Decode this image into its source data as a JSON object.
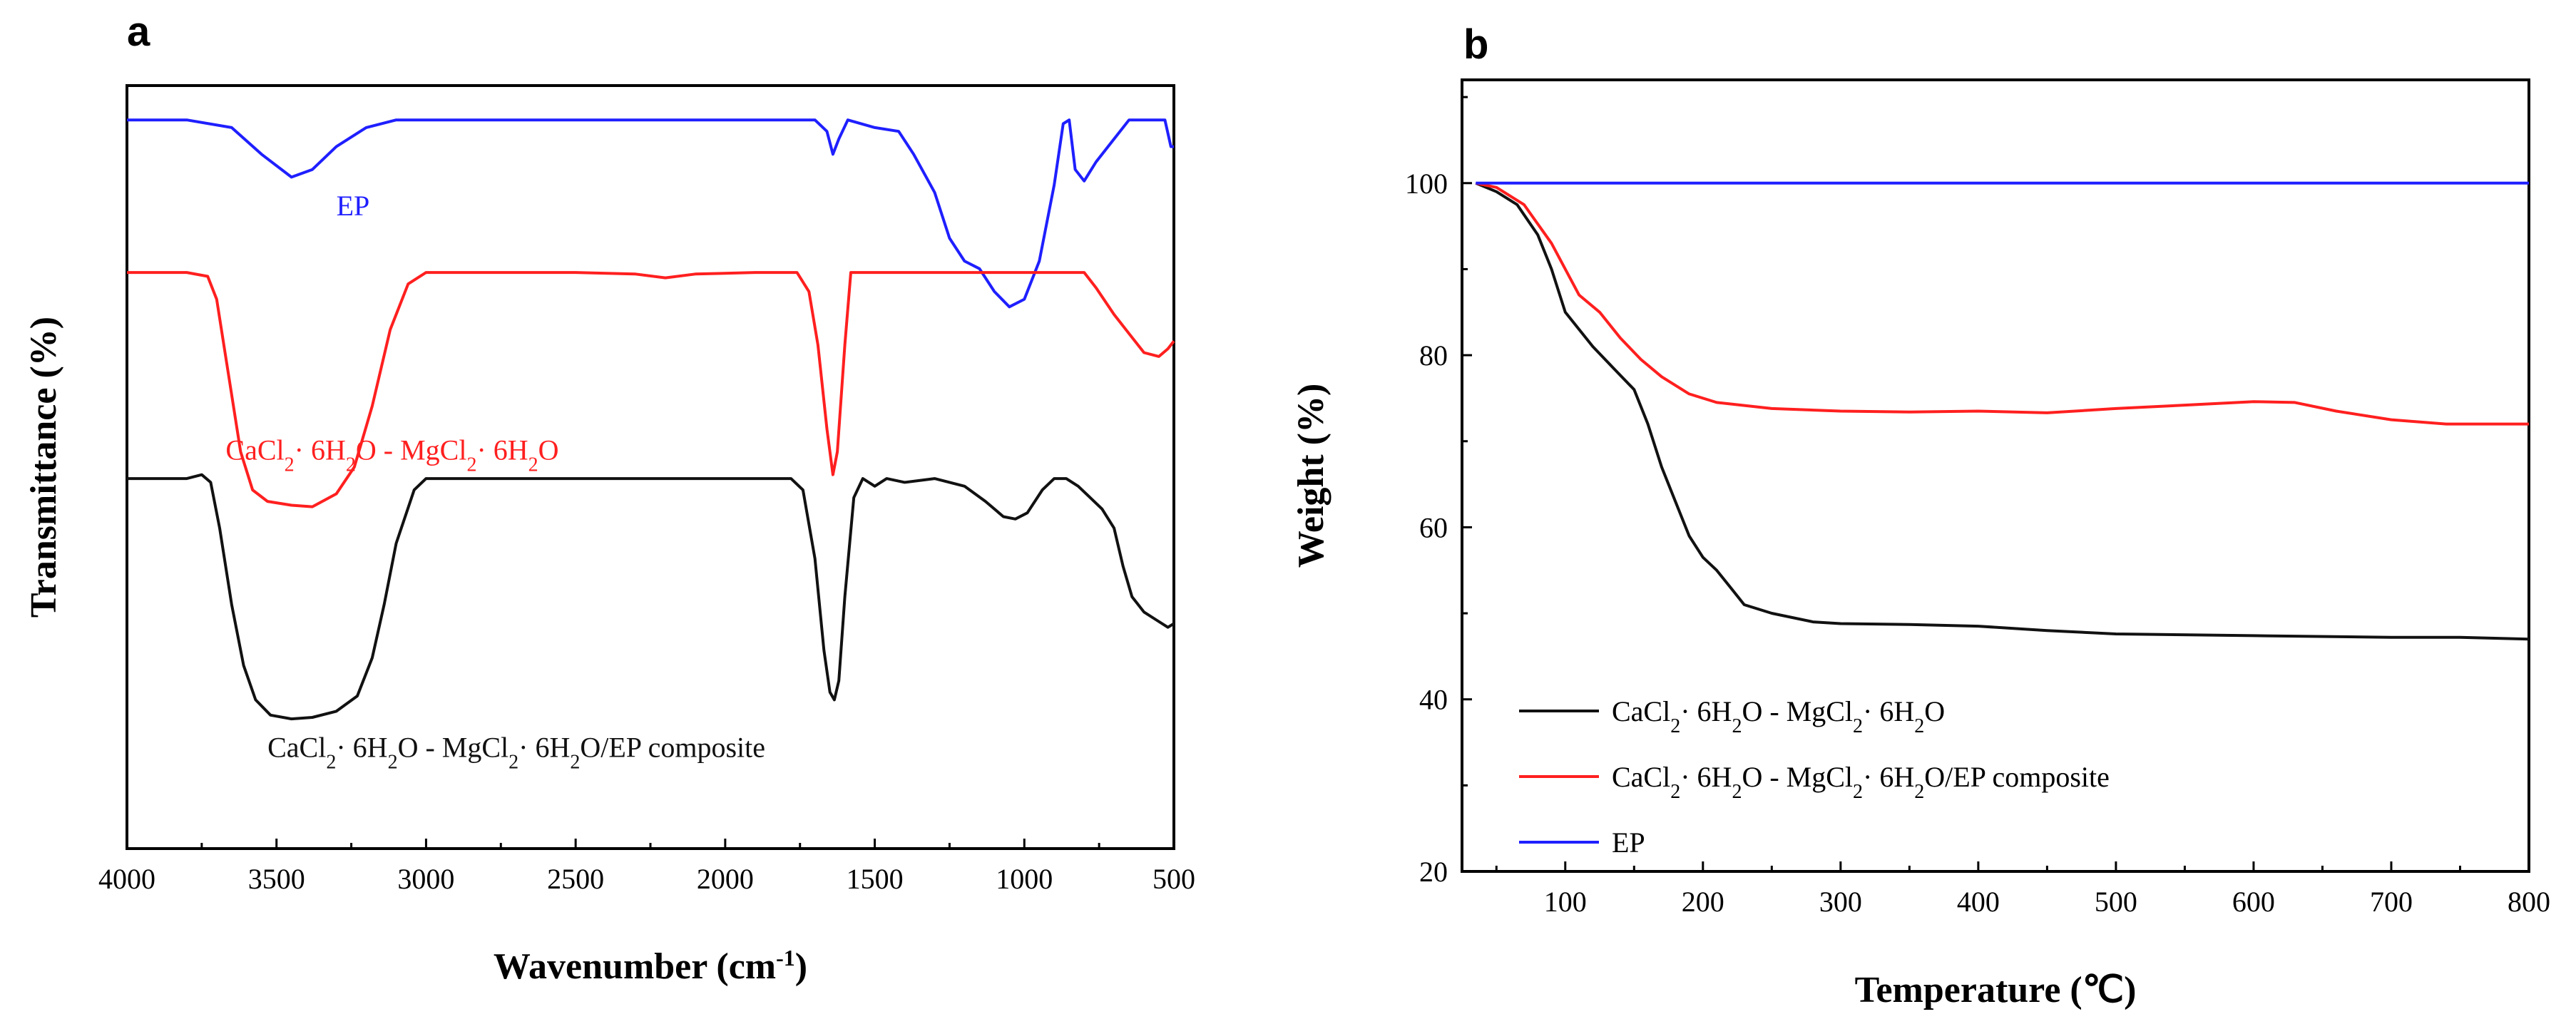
{
  "chart_data": [
    {
      "panel": "a",
      "type": "line",
      "title": "",
      "xlabel": "Wavenumber (cm-1)",
      "xlabel_parts": {
        "main": "Wavenumber (cm",
        "sup": "-1",
        "close": ")"
      },
      "ylabel": "Transmittance (%)",
      "xlim": [
        4000,
        500
      ],
      "x_reversed": true,
      "ylim": [
        0,
        100
      ],
      "y_ticks_shown": false,
      "grid": false,
      "xticks": [
        4000,
        3500,
        3000,
        2500,
        2000,
        1500,
        1000,
        500
      ],
      "tick_labels": [
        "4000",
        "3500",
        "3000",
        "2500",
        "2000",
        "1500",
        "1000",
        "500"
      ],
      "series": [
        {
          "name": "EP",
          "color": "#1f1fff",
          "label_text": "EP",
          "label_at": [
            3300,
            83
          ],
          "points": [
            [
              4000,
              95.5
            ],
            [
              3800,
              95.5
            ],
            [
              3650,
              94.5
            ],
            [
              3550,
              91
            ],
            [
              3450,
              88
            ],
            [
              3380,
              89
            ],
            [
              3300,
              92
            ],
            [
              3200,
              94.5
            ],
            [
              3100,
              95.5
            ],
            [
              2500,
              95.5
            ],
            [
              2000,
              95.5
            ],
            [
              1700,
              95.5
            ],
            [
              1660,
              94
            ],
            [
              1640,
              91
            ],
            [
              1620,
              93
            ],
            [
              1590,
              95.5
            ],
            [
              1500,
              94.5
            ],
            [
              1420,
              94
            ],
            [
              1370,
              91
            ],
            [
              1300,
              86
            ],
            [
              1250,
              80
            ],
            [
              1200,
              77
            ],
            [
              1150,
              76
            ],
            [
              1100,
              73
            ],
            [
              1050,
              71
            ],
            [
              1000,
              72
            ],
            [
              950,
              77
            ],
            [
              900,
              87
            ],
            [
              870,
              95
            ],
            [
              850,
              95.5
            ],
            [
              830,
              89
            ],
            [
              800,
              87.5
            ],
            [
              760,
              90
            ],
            [
              700,
              93
            ],
            [
              650,
              95.5
            ],
            [
              570,
              95.5
            ],
            [
              530,
              95.5
            ],
            [
              510,
              92
            ],
            [
              500,
              92
            ]
          ]
        },
        {
          "name": "CaCl2·6H2O - MgCl2·6H2O",
          "color": "#ff1f1f",
          "label_parts": [
            {
              "t": "CaCl"
            },
            {
              "t": "2",
              "sub": true
            },
            {
              "t": "·  6H"
            },
            {
              "t": "2",
              "sub": true
            },
            {
              "t": "O - MgCl"
            },
            {
              "t": "2",
              "sub": true
            },
            {
              "t": "·  6H"
            },
            {
              "t": "2",
              "sub": true
            },
            {
              "t": "O"
            }
          ],
          "label_at": [
            3670,
            51
          ],
          "points": [
            [
              4000,
              75.5
            ],
            [
              3800,
              75.5
            ],
            [
              3730,
              75
            ],
            [
              3700,
              72
            ],
            [
              3660,
              62
            ],
            [
              3620,
              52
            ],
            [
              3580,
              47
            ],
            [
              3530,
              45.5
            ],
            [
              3450,
              45
            ],
            [
              3380,
              44.8
            ],
            [
              3300,
              46.5
            ],
            [
              3240,
              50
            ],
            [
              3180,
              58
            ],
            [
              3120,
              68
            ],
            [
              3060,
              74
            ],
            [
              3000,
              75.5
            ],
            [
              2800,
              75.5
            ],
            [
              2500,
              75.5
            ],
            [
              2300,
              75.3
            ],
            [
              2200,
              74.8
            ],
            [
              2100,
              75.3
            ],
            [
              1900,
              75.5
            ],
            [
              1760,
              75.5
            ],
            [
              1720,
              73
            ],
            [
              1690,
              66
            ],
            [
              1660,
              55
            ],
            [
              1640,
              49
            ],
            [
              1625,
              52
            ],
            [
              1600,
              66
            ],
            [
              1580,
              75.5
            ],
            [
              1300,
              75.5
            ],
            [
              900,
              75.5
            ],
            [
              800,
              75.5
            ],
            [
              760,
              73.5
            ],
            [
              700,
              70
            ],
            [
              650,
              67.5
            ],
            [
              600,
              65
            ],
            [
              550,
              64.5
            ],
            [
              520,
              65.5
            ],
            [
              500,
              66.5
            ]
          ]
        },
        {
          "name": "CaCl2·6H2O - MgCl2·6H2O/EP composite",
          "color": "#111111",
          "label_parts": [
            {
              "t": "CaCl"
            },
            {
              "t": "2",
              "sub": true
            },
            {
              "t": "·  6H"
            },
            {
              "t": "2",
              "sub": true
            },
            {
              "t": "O - MgCl"
            },
            {
              "t": "2",
              "sub": true
            },
            {
              "t": "·  6H"
            },
            {
              "t": "2",
              "sub": true
            },
            {
              "t": "O/EP composite"
            }
          ],
          "label_at": [
            3530,
            12
          ],
          "points": [
            [
              4000,
              48.5
            ],
            [
              3800,
              48.5
            ],
            [
              3750,
              49
            ],
            [
              3720,
              48
            ],
            [
              3690,
              42
            ],
            [
              3650,
              32
            ],
            [
              3610,
              24
            ],
            [
              3570,
              19.5
            ],
            [
              3520,
              17.5
            ],
            [
              3450,
              17
            ],
            [
              3380,
              17.2
            ],
            [
              3300,
              18
            ],
            [
              3230,
              20
            ],
            [
              3180,
              25
            ],
            [
              3140,
              32
            ],
            [
              3100,
              40
            ],
            [
              3040,
              47
            ],
            [
              3000,
              48.5
            ],
            [
              2800,
              48.5
            ],
            [
              2500,
              48.5
            ],
            [
              2000,
              48.5
            ],
            [
              1780,
              48.5
            ],
            [
              1740,
              47
            ],
            [
              1700,
              38
            ],
            [
              1670,
              26
            ],
            [
              1650,
              20.5
            ],
            [
              1635,
              19.5
            ],
            [
              1620,
              22
            ],
            [
              1600,
              33
            ],
            [
              1570,
              46
            ],
            [
              1540,
              48.5
            ],
            [
              1500,
              47.5
            ],
            [
              1460,
              48.5
            ],
            [
              1400,
              48
            ],
            [
              1300,
              48.5
            ],
            [
              1200,
              47.5
            ],
            [
              1130,
              45.5
            ],
            [
              1070,
              43.5
            ],
            [
              1030,
              43.2
            ],
            [
              990,
              44
            ],
            [
              940,
              47
            ],
            [
              900,
              48.5
            ],
            [
              860,
              48.5
            ],
            [
              820,
              47.5
            ],
            [
              780,
              46
            ],
            [
              740,
              44.5
            ],
            [
              700,
              42
            ],
            [
              670,
              37
            ],
            [
              640,
              33
            ],
            [
              600,
              31
            ],
            [
              560,
              30
            ],
            [
              520,
              29
            ],
            [
              500,
              29.5
            ]
          ]
        }
      ]
    },
    {
      "panel": "b",
      "type": "line",
      "title": "",
      "xlabel": "Temperature (℃)",
      "ylabel": "Weight (%)",
      "xlim": [
        25,
        800
      ],
      "ylim": [
        20,
        112
      ],
      "grid": false,
      "xticks": [
        100,
        200,
        300,
        400,
        500,
        600,
        700,
        800
      ],
      "yticks": [
        20,
        40,
        60,
        80,
        100
      ],
      "legend_position": "lower-left",
      "series": [
        {
          "name": "CaCl2·6H2O - MgCl2·6H2O",
          "color": "#111111",
          "label_parts": [
            {
              "t": "CaCl"
            },
            {
              "t": "2",
              "sub": true
            },
            {
              "t": "·  6H"
            },
            {
              "t": "2",
              "sub": true
            },
            {
              "t": "O - MgCl"
            },
            {
              "t": "2",
              "sub": true
            },
            {
              "t": "·  6H"
            },
            {
              "t": "2",
              "sub": true
            },
            {
              "t": "O"
            }
          ],
          "points": [
            [
              35,
              100
            ],
            [
              50,
              99
            ],
            [
              65,
              97.5
            ],
            [
              80,
              94
            ],
            [
              90,
              90
            ],
            [
              100,
              85
            ],
            [
              110,
              83
            ],
            [
              120,
              81
            ],
            [
              135,
              78.5
            ],
            [
              150,
              76
            ],
            [
              160,
              72
            ],
            [
              170,
              67
            ],
            [
              180,
              63
            ],
            [
              190,
              59
            ],
            [
              200,
              56.5
            ],
            [
              210,
              55
            ],
            [
              220,
              53
            ],
            [
              230,
              51
            ],
            [
              250,
              50
            ],
            [
              280,
              49
            ],
            [
              300,
              48.8
            ],
            [
              350,
              48.7
            ],
            [
              400,
              48.5
            ],
            [
              450,
              48
            ],
            [
              500,
              47.6
            ],
            [
              600,
              47.4
            ],
            [
              700,
              47.2
            ],
            [
              750,
              47.2
            ],
            [
              800,
              47
            ]
          ]
        },
        {
          "name": "CaCl2·6H2O - MgCl2·6H2O/EP composite",
          "color": "#ff1f1f",
          "label_parts": [
            {
              "t": "CaCl"
            },
            {
              "t": "2",
              "sub": true
            },
            {
              "t": "·  6H"
            },
            {
              "t": "2",
              "sub": true
            },
            {
              "t": "O - MgCl"
            },
            {
              "t": "2",
              "sub": true
            },
            {
              "t": "·  6H"
            },
            {
              "t": "2",
              "sub": true
            },
            {
              "t": "O/EP composite"
            }
          ],
          "points": [
            [
              35,
              100
            ],
            [
              50,
              99.5
            ],
            [
              70,
              97.5
            ],
            [
              90,
              93
            ],
            [
              110,
              87
            ],
            [
              125,
              85
            ],
            [
              140,
              82
            ],
            [
              155,
              79.5
            ],
            [
              170,
              77.5
            ],
            [
              190,
              75.5
            ],
            [
              210,
              74.5
            ],
            [
              250,
              73.8
            ],
            [
              300,
              73.5
            ],
            [
              350,
              73.4
            ],
            [
              400,
              73.5
            ],
            [
              450,
              73.3
            ],
            [
              500,
              73.8
            ],
            [
              550,
              74.2
            ],
            [
              600,
              74.6
            ],
            [
              630,
              74.5
            ],
            [
              660,
              73.5
            ],
            [
              700,
              72.5
            ],
            [
              740,
              72
            ],
            [
              800,
              72
            ]
          ]
        },
        {
          "name": "EP",
          "color": "#1f1fff",
          "label_parts": [
            {
              "t": "EP"
            }
          ],
          "points": [
            [
              35,
              100
            ],
            [
              800,
              100
            ]
          ]
        }
      ]
    }
  ],
  "panel_labels": {
    "a": "a",
    "b": "b"
  },
  "panel_a_ylabel": "Transmittance (%)",
  "panel_b_xlabel": "Temperature (℃)",
  "panel_b_ylabel": "Weight (%)"
}
